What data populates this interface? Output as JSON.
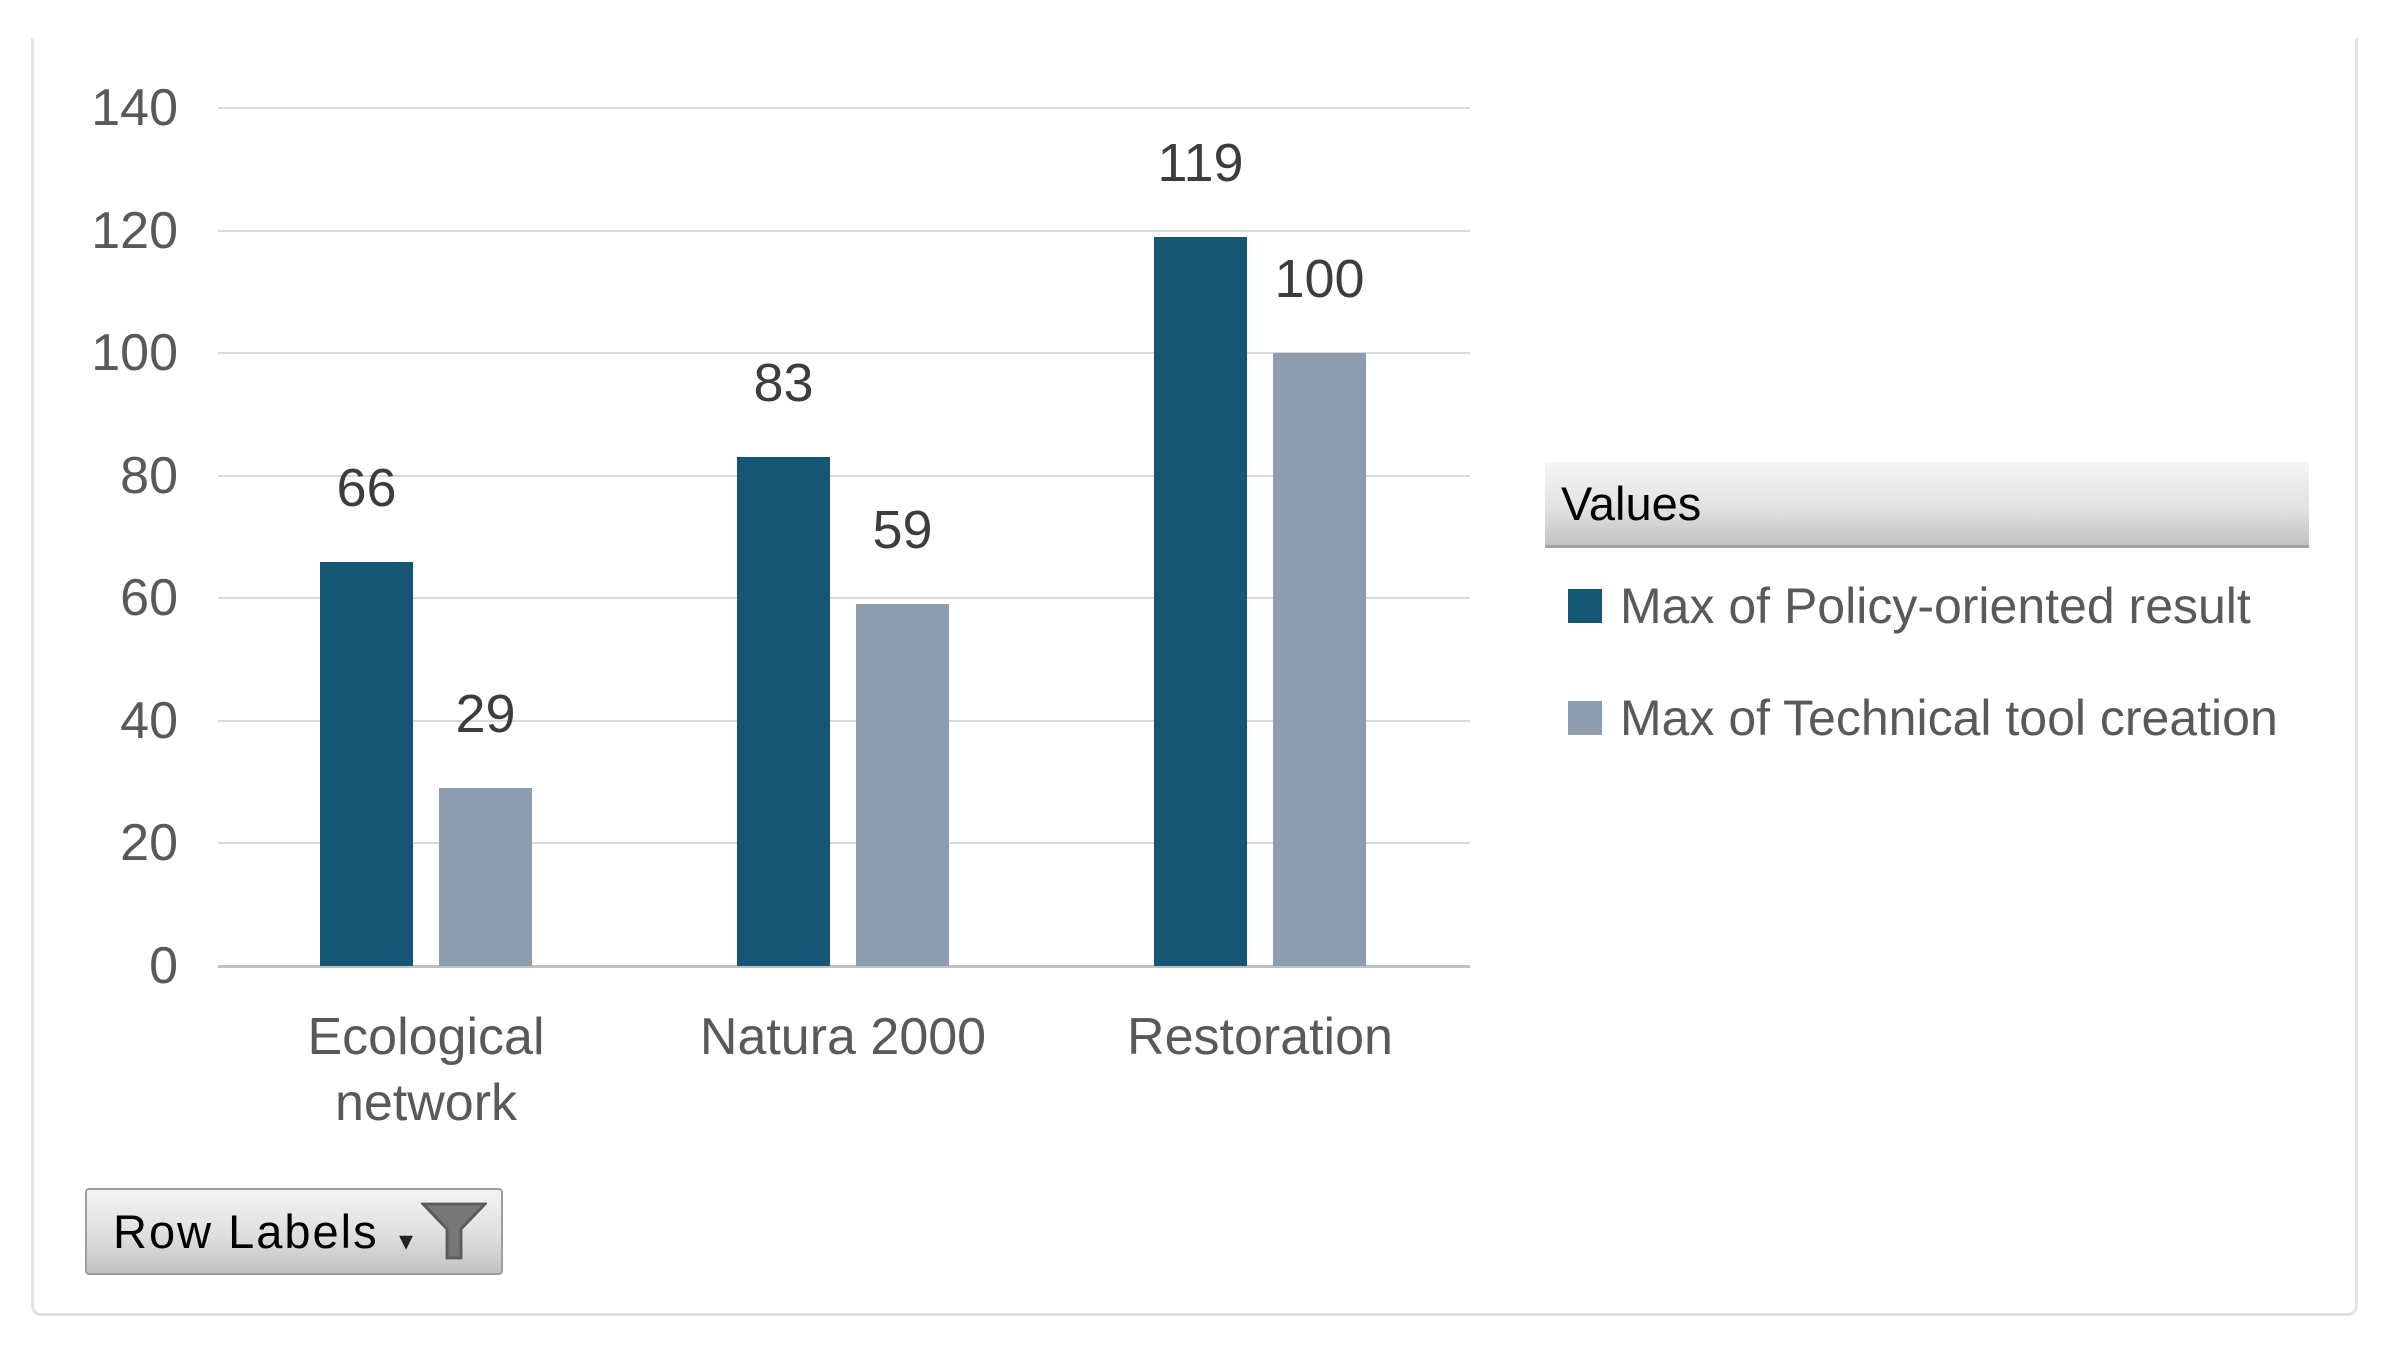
{
  "chart_data": {
    "type": "bar",
    "title": "",
    "categories": [
      "Ecological network",
      "Natura 2000",
      "Restoration"
    ],
    "series": [
      {
        "name": "Max of Policy-oriented result",
        "color": "#145674",
        "values": [
          66,
          83,
          119
        ]
      },
      {
        "name": "Max of Technical tool creation",
        "color": "#8B9DAF",
        "values": [
          29,
          59,
          100
        ]
      }
    ],
    "data_labels": [
      [
        66,
        29
      ],
      [
        83,
        59
      ],
      [
        119,
        100
      ]
    ],
    "ylim": [
      0,
      140
    ],
    "ytick_step": 20,
    "ytick_labels": [
      "0",
      "20",
      "40",
      "60",
      "80",
      "100",
      "120",
      "140"
    ],
    "xlabel": "",
    "ylabel": "",
    "grid": true,
    "legend_position": "right"
  },
  "legend": {
    "header": "Values",
    "items": [
      "Max of Policy-oriented result",
      "Max of Technical tool creation"
    ]
  },
  "filter_button": {
    "label": "Row Labels",
    "dropdown_icon": "▾"
  },
  "colors": {
    "series1": "#145674",
    "series2": "#8B9DAF",
    "gridline": "#D9D9D9",
    "axis_line": "#C0C0C0",
    "axis_text": "#595959",
    "data_label_text": "#3D3D3D",
    "legend_text": "#595959"
  }
}
